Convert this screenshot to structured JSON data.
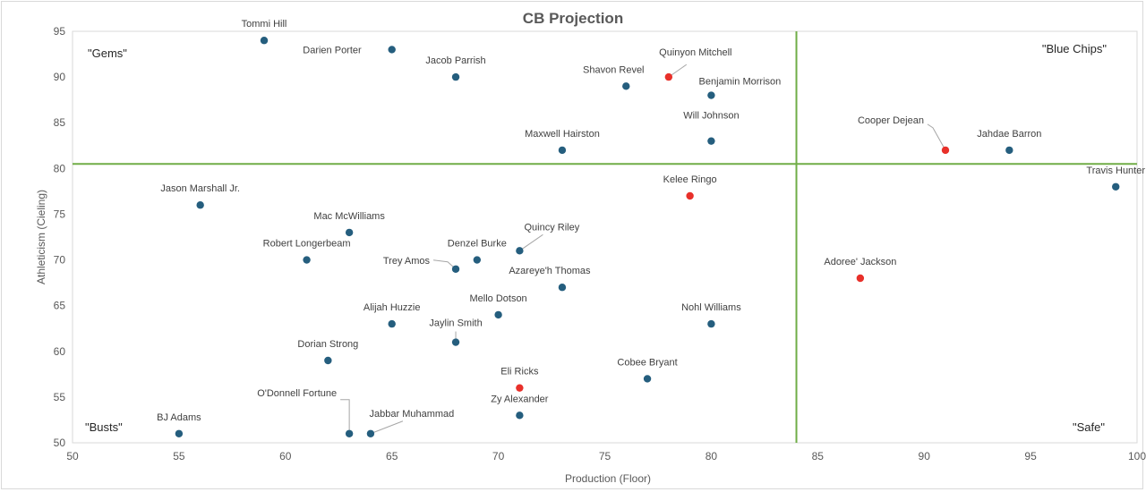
{
  "chart_data": {
    "type": "scatter",
    "title": "CB Projection",
    "xlabel": "Production (Floor)",
    "ylabel": "Athleticism (Cieling)",
    "xlim": [
      50,
      100
    ],
    "ylim": [
      50,
      95
    ],
    "xticks": [
      50,
      55,
      60,
      65,
      70,
      75,
      80,
      85,
      90,
      95,
      100
    ],
    "yticks": [
      50,
      55,
      60,
      65,
      70,
      75,
      80,
      85,
      90,
      95
    ],
    "grid": false,
    "quadrant_dividers": {
      "x": 84,
      "y": 80.5,
      "color": "#70ad47"
    },
    "quadrant_labels": {
      "top_left": "\"Gems\"",
      "top_right": "\"Blue Chips\"",
      "bottom_left": "\"Busts\"",
      "bottom_right": "\"Safe\""
    },
    "colors": {
      "default": "#255e7e",
      "highlight": "#e8302a"
    },
    "points": [
      {
        "name": "Tommi Hill",
        "x": 59,
        "y": 94,
        "highlight": false
      },
      {
        "name": "Darien Porter",
        "x": 65,
        "y": 93,
        "highlight": false
      },
      {
        "name": "Jacob Parrish",
        "x": 68,
        "y": 90,
        "highlight": false
      },
      {
        "name": "Quinyon Mitchell",
        "x": 78,
        "y": 90,
        "highlight": true
      },
      {
        "name": "Shavon Revel",
        "x": 76,
        "y": 89,
        "highlight": false
      },
      {
        "name": "Benjamin Morrison",
        "x": 80,
        "y": 88,
        "highlight": false
      },
      {
        "name": "Maxwell Hairston",
        "x": 73,
        "y": 82,
        "highlight": false
      },
      {
        "name": "Will Johnson",
        "x": 80,
        "y": 83,
        "highlight": false
      },
      {
        "name": "Cooper Dejean",
        "x": 91,
        "y": 82,
        "highlight": true
      },
      {
        "name": "Jahdae Barron",
        "x": 94,
        "y": 82,
        "highlight": false
      },
      {
        "name": "Travis Hunter",
        "x": 99,
        "y": 78,
        "highlight": false
      },
      {
        "name": "Kelee Ringo",
        "x": 79,
        "y": 77,
        "highlight": true
      },
      {
        "name": "Jason Marshall Jr.",
        "x": 56,
        "y": 76,
        "highlight": false
      },
      {
        "name": "Mac McWilliams",
        "x": 63,
        "y": 73,
        "highlight": false
      },
      {
        "name": "Quincy Riley",
        "x": 71,
        "y": 71,
        "highlight": false
      },
      {
        "name": "Denzel Burke",
        "x": 69,
        "y": 70,
        "highlight": false
      },
      {
        "name": "Robert Longerbeam",
        "x": 61,
        "y": 70,
        "highlight": false
      },
      {
        "name": "Trey Amos",
        "x": 68,
        "y": 69,
        "highlight": false
      },
      {
        "name": "Adoree' Jackson",
        "x": 87,
        "y": 68,
        "highlight": true
      },
      {
        "name": "Azareye'h Thomas",
        "x": 73,
        "y": 67,
        "highlight": false
      },
      {
        "name": "Mello Dotson",
        "x": 70,
        "y": 64,
        "highlight": false
      },
      {
        "name": "Alijah Huzzie",
        "x": 65,
        "y": 63,
        "highlight": false
      },
      {
        "name": "Nohl Williams",
        "x": 80,
        "y": 63,
        "highlight": false
      },
      {
        "name": "Jaylin Smith",
        "x": 68,
        "y": 61,
        "highlight": false
      },
      {
        "name": "Dorian Strong",
        "x": 62,
        "y": 59,
        "highlight": false
      },
      {
        "name": "Cobee Bryant",
        "x": 77,
        "y": 57,
        "highlight": false
      },
      {
        "name": "Eli Ricks",
        "x": 71,
        "y": 56,
        "highlight": true
      },
      {
        "name": "Zy Alexander",
        "x": 71,
        "y": 53,
        "highlight": false
      },
      {
        "name": "BJ Adams",
        "x": 55,
        "y": 51,
        "highlight": false
      },
      {
        "name": "O'Donnell Fortune",
        "x": 63,
        "y": 51,
        "highlight": false
      },
      {
        "name": "Jabbar Muhammad",
        "x": 64,
        "y": 51,
        "highlight": false
      }
    ]
  }
}
